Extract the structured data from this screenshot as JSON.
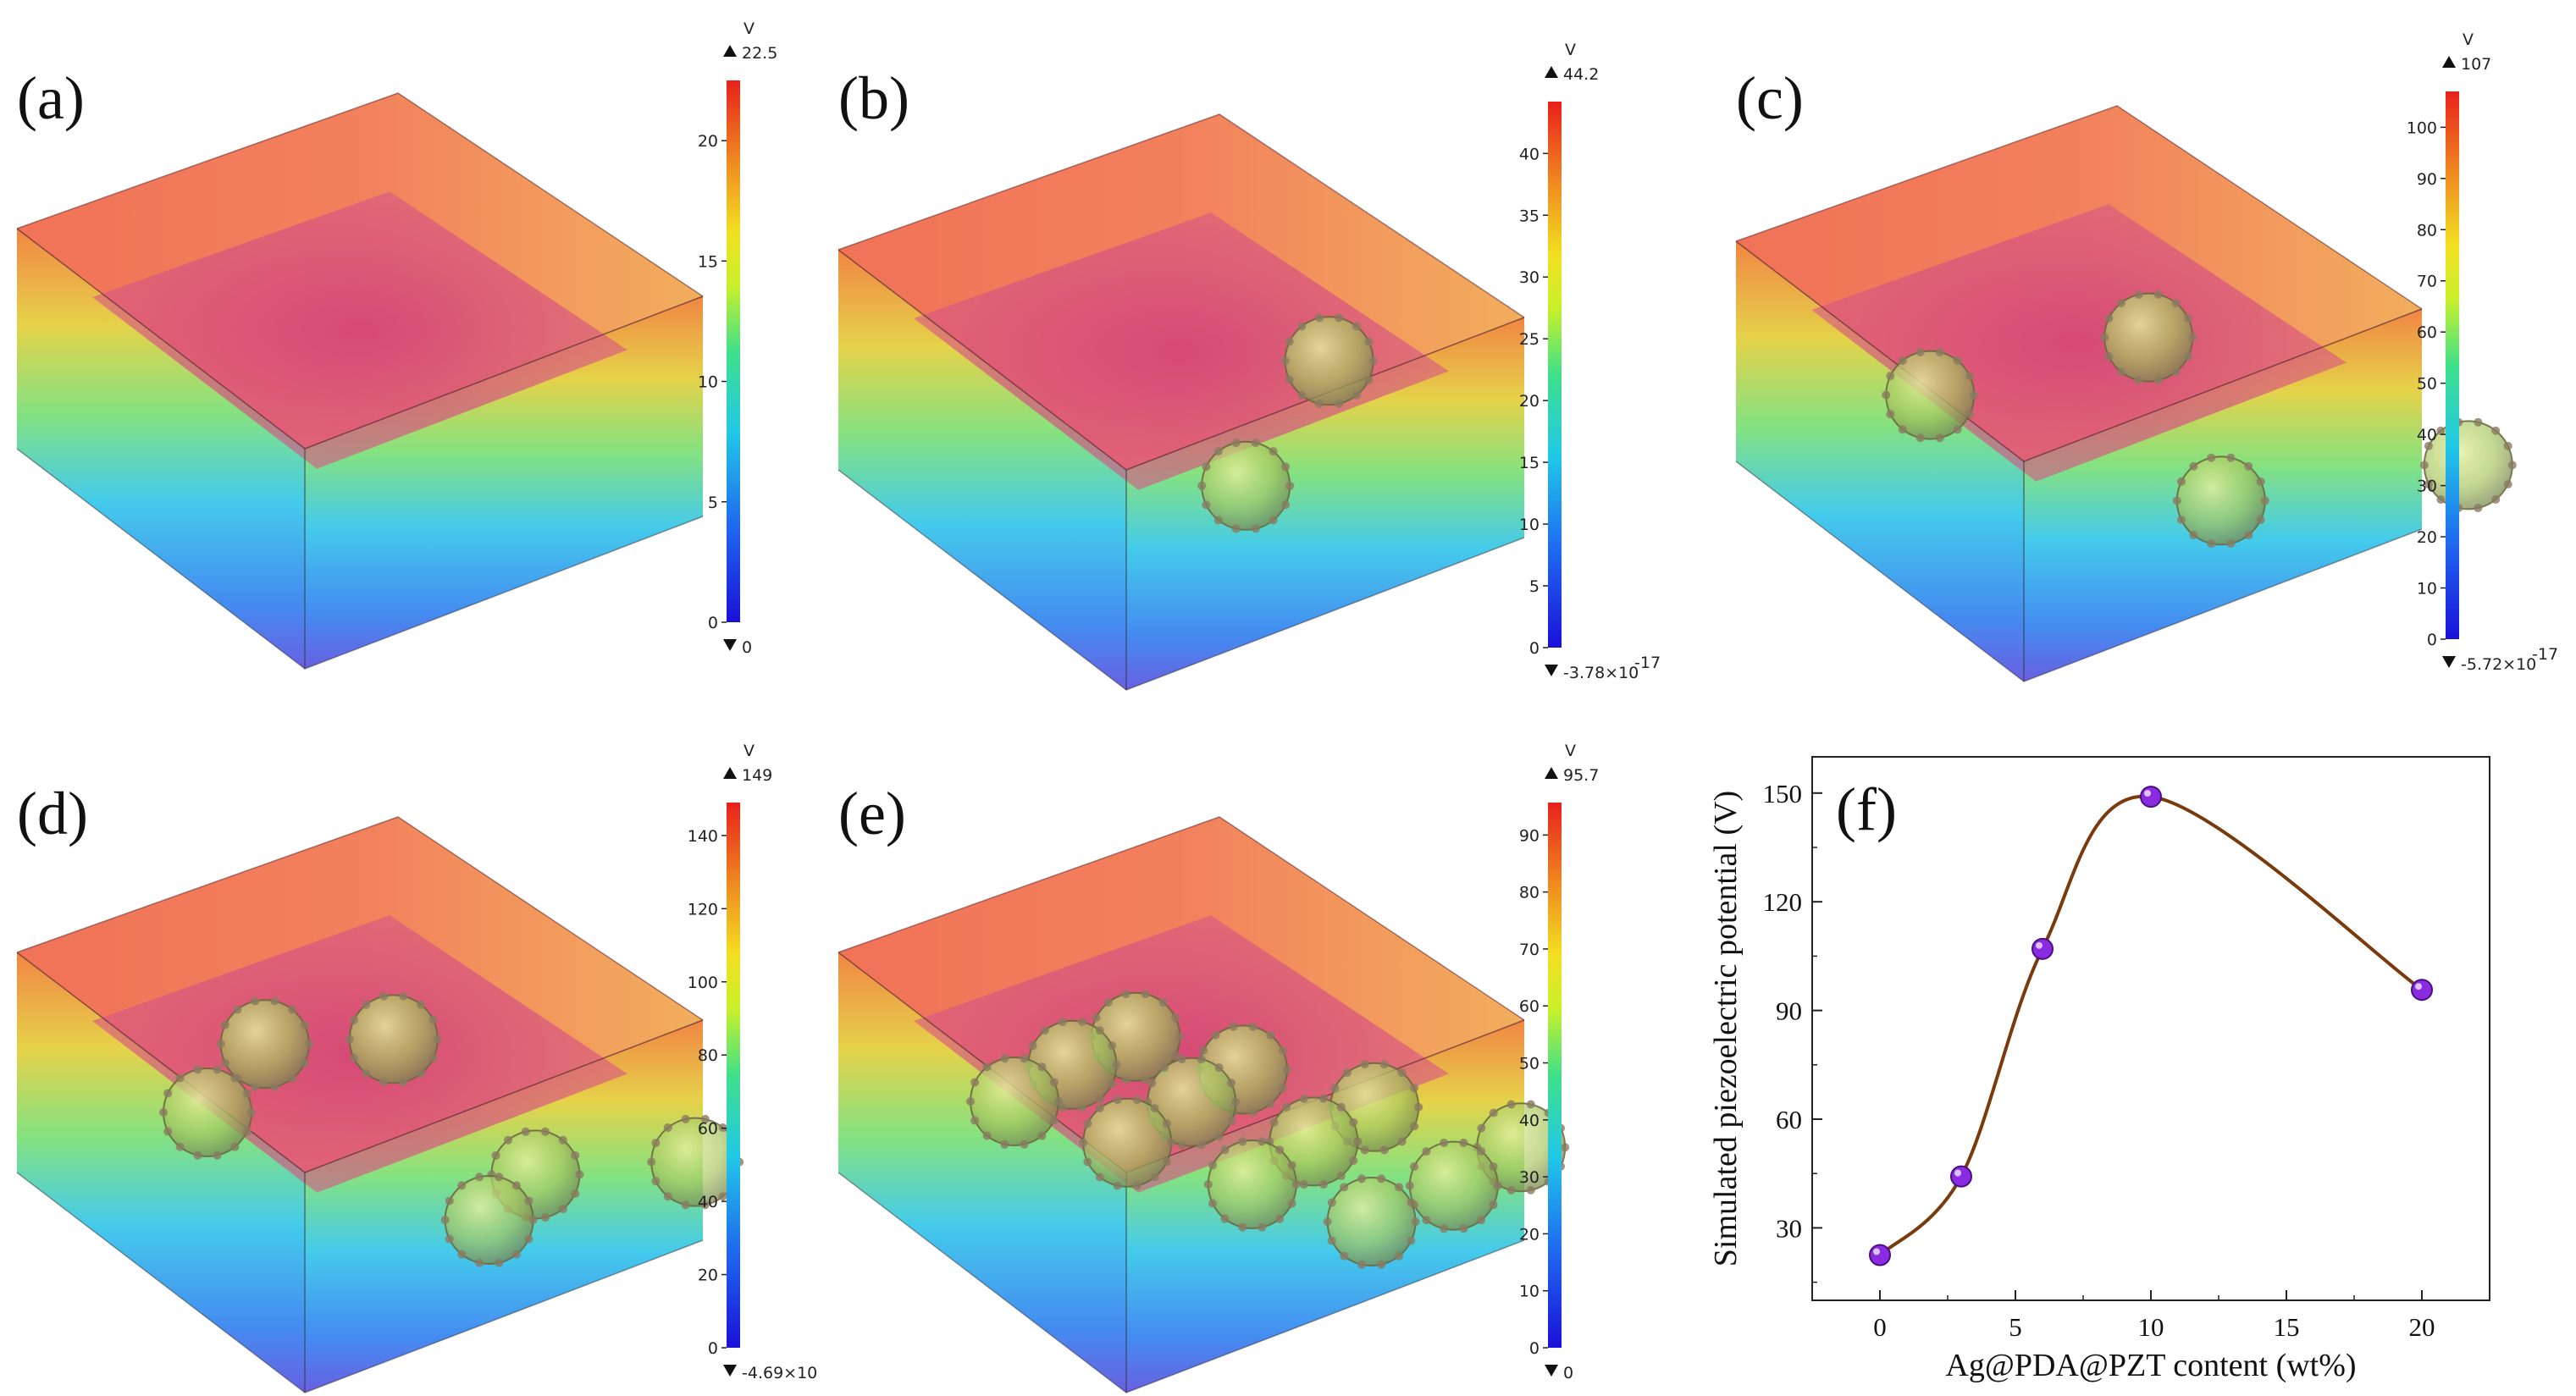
{
  "panels": [
    {
      "label": "(a)",
      "cb_max": "22.5",
      "cb_min": "0",
      "cb_ticks": [
        "0",
        "5",
        "10",
        "15",
        "20"
      ],
      "tick_vals": [
        0,
        5,
        10,
        15,
        20
      ],
      "vmax": 22.5,
      "particle_count": 0
    },
    {
      "label": "(b)",
      "cb_max": "44.2",
      "cb_min": "-3.78×10",
      "cb_min_exp": "-17",
      "cb_ticks": [
        "0",
        "5",
        "10",
        "15",
        "20",
        "25",
        "30",
        "35",
        "40"
      ],
      "tick_vals": [
        0,
        5,
        10,
        15,
        20,
        25,
        30,
        35,
        40
      ],
      "vmax": 44.2,
      "particle_count": 2
    },
    {
      "label": "(c)",
      "cb_max": "107",
      "cb_min": "-5.72×10",
      "cb_min_exp": "-17",
      "cb_ticks": [
        "0",
        "10",
        "20",
        "30",
        "40",
        "50",
        "60",
        "70",
        "80",
        "90",
        "100"
      ],
      "tick_vals": [
        0,
        10,
        20,
        30,
        40,
        50,
        60,
        70,
        80,
        90,
        100
      ],
      "vmax": 107,
      "particle_count": 4
    },
    {
      "label": "(d)",
      "cb_max": "149",
      "cb_min": "-4.69×10",
      "cb_ticks": [
        "0",
        "20",
        "40",
        "60",
        "80",
        "100",
        "120",
        "140"
      ],
      "tick_vals": [
        0,
        20,
        40,
        60,
        80,
        100,
        120,
        140
      ],
      "vmax": 149,
      "particle_count": 6
    },
    {
      "label": "(e)",
      "cb_max": "95.7",
      "cb_min": "0",
      "cb_ticks": [
        "0",
        "10",
        "20",
        "30",
        "40",
        "50",
        "60",
        "70",
        "80",
        "90"
      ],
      "tick_vals": [
        0,
        10,
        20,
        30,
        40,
        50,
        60,
        70,
        80,
        90
      ],
      "vmax": 95.7,
      "particle_count": 12
    }
  ],
  "colorbar_unit": "V",
  "colors": {
    "plot_line": "#7a3a0c",
    "marker": "#8a2be2",
    "cb_top": "#e8201c",
    "cb_bottom": "#1a10d8"
  },
  "chart_data": {
    "label": "(f)",
    "type": "line",
    "xlabel": "Ag@PDA@PZT content (wt%)",
    "ylabel": "Simulated piezoelectric potential (V)",
    "x": [
      0,
      3,
      6,
      10,
      20
    ],
    "y": [
      22.5,
      44.2,
      107,
      149,
      95.7
    ],
    "xlim": [
      -2.5,
      22.5
    ],
    "ylim": [
      10,
      160
    ],
    "xticks": [
      0,
      5,
      10,
      15,
      20
    ],
    "yticks": [
      30,
      60,
      90,
      120,
      150
    ],
    "grid": false,
    "legend": false
  }
}
